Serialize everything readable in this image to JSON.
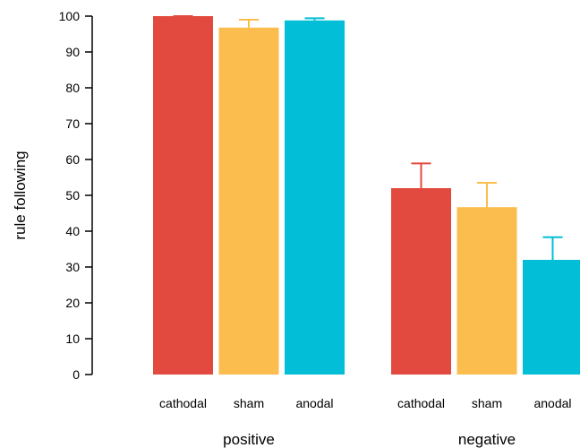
{
  "chart_data": {
    "type": "bar",
    "ylabel": "rule following",
    "ylim": [
      0,
      100
    ],
    "yticks": [
      0,
      10,
      20,
      30,
      40,
      50,
      60,
      70,
      80,
      90,
      100
    ],
    "grid": false,
    "groups": [
      {
        "name": "positive",
        "bars": [
          {
            "category": "cathodal",
            "value": 100,
            "error": 0,
            "color": "#e34a3f"
          },
          {
            "category": "sham",
            "value": 96.8,
            "error": 2.2,
            "color": "#fbbd4d"
          },
          {
            "category": "anodal",
            "value": 98.8,
            "error": 0.6,
            "color": "#02bfd7"
          }
        ]
      },
      {
        "name": "negative",
        "bars": [
          {
            "category": "cathodal",
            "value": 52,
            "error": 6.9,
            "color": "#e34a3f"
          },
          {
            "category": "sham",
            "value": 46.7,
            "error": 6.8,
            "color": "#fbbd4d"
          },
          {
            "category": "anodal",
            "value": 32,
            "error": 6.3,
            "color": "#02bfd7"
          }
        ]
      }
    ]
  }
}
